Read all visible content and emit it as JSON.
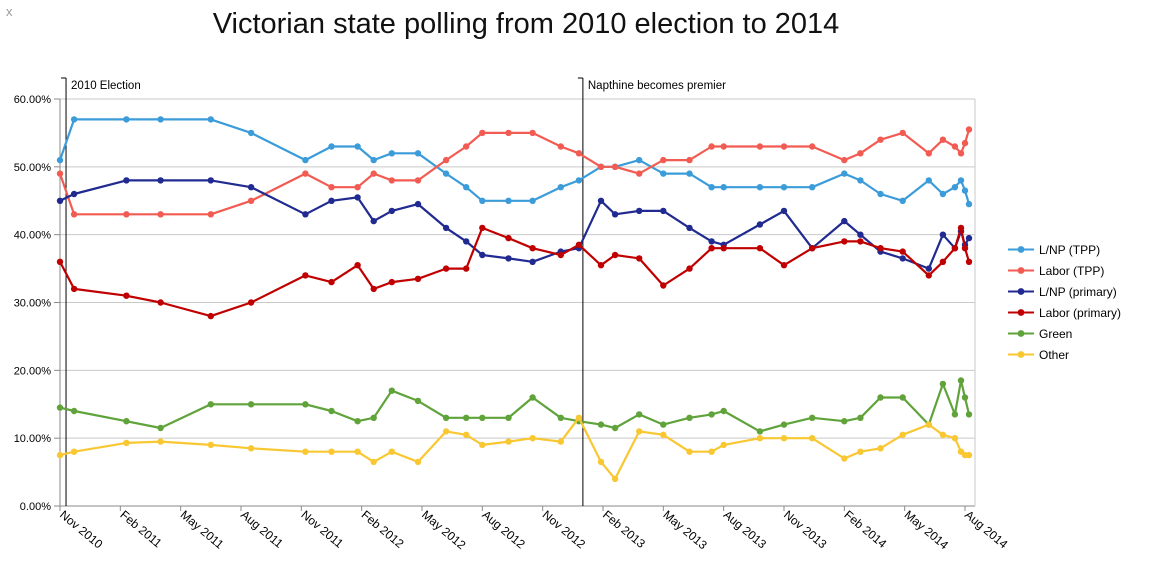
{
  "artifacts": {
    "stray_text": "x"
  },
  "chart_data": {
    "type": "line",
    "title": "Victorian state polling from 2010 election to 2014",
    "xlabel": "",
    "ylabel": "",
    "ylim": [
      0,
      60
    ],
    "grid": "horizontal",
    "legend_position": "right",
    "x_unit": "months since Nov 2010 election",
    "x_range": [
      0,
      45.5
    ],
    "y_ticks": [
      {
        "value": 60,
        "label": "60.00%"
      },
      {
        "value": 50,
        "label": "50.00%"
      },
      {
        "value": 40,
        "label": "40.00%"
      },
      {
        "value": 30,
        "label": "30.00%"
      },
      {
        "value": 20,
        "label": "20.00%"
      },
      {
        "value": 10,
        "label": "10.00%"
      },
      {
        "value": 0,
        "label": "0.00%"
      }
    ],
    "x_ticks": [
      {
        "t": 0,
        "label": "Nov 2010"
      },
      {
        "t": 3,
        "label": "Feb 2011"
      },
      {
        "t": 6,
        "label": "May 2011"
      },
      {
        "t": 9,
        "label": "Aug 2011"
      },
      {
        "t": 12,
        "label": "Nov 2011"
      },
      {
        "t": 15,
        "label": "Feb 2012"
      },
      {
        "t": 18,
        "label": "May 2012"
      },
      {
        "t": 21,
        "label": "Aug 2012"
      },
      {
        "t": 24,
        "label": "Nov 2012"
      },
      {
        "t": 27,
        "label": "Feb 2013"
      },
      {
        "t": 30,
        "label": "May 2013"
      },
      {
        "t": 33,
        "label": "Aug 2013"
      },
      {
        "t": 36,
        "label": "Nov 2013"
      },
      {
        "t": 39,
        "label": "Feb 2014"
      },
      {
        "t": 42,
        "label": "May 2014"
      },
      {
        "t": 45,
        "label": "Aug 2014"
      }
    ],
    "annotations": [
      {
        "t": 0.3,
        "label": "2010 Election"
      },
      {
        "t": 26.0,
        "label": "Napthine becomes premier"
      }
    ],
    "x": [
      0,
      0.7,
      3.3,
      5,
      7.5,
      9.5,
      12.2,
      13.5,
      14.8,
      15.6,
      16.5,
      17.8,
      19.2,
      20.2,
      21,
      22.3,
      23.5,
      24.9,
      25.8,
      26.9,
      27.6,
      28.8,
      30,
      31.3,
      32.4,
      33,
      34.8,
      36,
      37.4,
      39,
      39.8,
      40.8,
      41.9,
      43.2,
      43.9,
      44.5,
      44.8,
      45,
      45.2
    ],
    "series": [
      {
        "name": "L/NP (TPP)",
        "color": "#3B9CD9",
        "values": [
          51,
          57,
          57,
          57,
          57,
          55,
          51,
          53,
          53,
          51,
          52,
          52,
          49,
          47,
          45,
          45,
          45,
          47,
          48,
          50,
          50,
          51,
          49,
          49,
          47,
          47,
          47,
          47,
          47,
          49,
          48,
          46,
          45,
          48,
          46,
          47,
          48,
          46.5,
          44.5
        ]
      },
      {
        "name": "Labor (TPP)",
        "color": "#F25B52",
        "values": [
          49,
          43,
          43,
          43,
          43,
          45,
          49,
          47,
          47,
          49,
          48,
          48,
          51,
          53,
          55,
          55,
          55,
          53,
          52,
          50,
          50,
          49,
          51,
          51,
          53,
          53,
          53,
          53,
          53,
          51,
          52,
          54,
          55,
          52,
          54,
          53,
          52,
          53.5,
          55.5
        ]
      },
      {
        "name": "L/NP (primary)",
        "color": "#202A90",
        "values": [
          45,
          46,
          48,
          48,
          48,
          47,
          43,
          45,
          45.5,
          42,
          43.5,
          44.5,
          41,
          39,
          37,
          36.5,
          36,
          37.5,
          38,
          45,
          43,
          43.5,
          43.5,
          41,
          39,
          38.5,
          41.5,
          43.5,
          38,
          42,
          40,
          37.5,
          36.5,
          35,
          40,
          38,
          40.5,
          38.5,
          39.5
        ]
      },
      {
        "name": "Labor (primary)",
        "color": "#C00000",
        "values": [
          36,
          32,
          31,
          30,
          28,
          30,
          34,
          33,
          35.5,
          32,
          33,
          33.5,
          35,
          35,
          41,
          39.5,
          38,
          37,
          38.5,
          35.5,
          37,
          36.5,
          32.5,
          35,
          38,
          38,
          38,
          35.5,
          38,
          39,
          39,
          38,
          37.5,
          34,
          36,
          38,
          41,
          38,
          36
        ]
      },
      {
        "name": "Green",
        "color": "#5FA33A",
        "values": [
          14.5,
          14,
          12.5,
          11.5,
          15,
          15,
          15,
          14,
          12.5,
          13,
          17,
          15.5,
          13,
          13,
          13,
          13,
          16,
          13,
          12.5,
          12,
          11.5,
          13.5,
          12,
          13,
          13.5,
          14,
          11,
          12,
          13,
          12.5,
          13,
          16,
          16,
          12,
          18,
          13.5,
          18.5,
          16,
          13.5
        ]
      },
      {
        "name": "Other",
        "color": "#F8C732",
        "values": [
          7.5,
          8,
          9.3,
          9.5,
          9,
          8.5,
          8,
          8,
          8,
          6.5,
          8,
          6.5,
          11,
          10.5,
          9,
          9.5,
          10,
          9.5,
          13,
          6.5,
          4,
          11,
          10.5,
          8,
          8,
          9,
          10,
          10,
          10,
          7,
          8,
          8.5,
          10.5,
          12,
          10.5,
          10,
          8,
          7.5,
          7.5
        ]
      }
    ]
  }
}
